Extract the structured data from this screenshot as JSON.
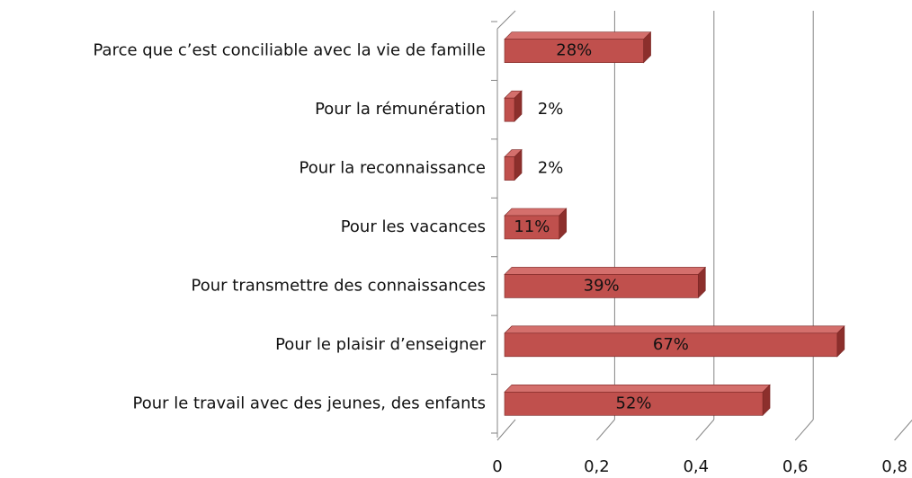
{
  "chart_data": {
    "type": "bar3d-horizontal",
    "categories": [
      "Parce que c’est conciliable avec la vie de famille",
      "Pour la rémunération",
      "Pour la reconnaissance",
      "Pour les vacances",
      "Pour transmettre des connaissances",
      "Pour le plaisir d’enseigner",
      "Pour le travail avec des jeunes, des enfants"
    ],
    "values": [
      0.28,
      0.02,
      0.02,
      0.11,
      0.39,
      0.67,
      0.52
    ],
    "value_labels": [
      "28%",
      "2%",
      "2%",
      "11%",
      "39%",
      "67%",
      "52%"
    ],
    "color": "#c0504d",
    "xlim": [
      0,
      0.8
    ],
    "xticks": [
      0,
      {
        "value": 0.2,
        "label": "0,2"
      },
      {
        "value": 0.4,
        "label": "0,4"
      },
      {
        "value": 0.6,
        "label": "0,6"
      },
      {
        "value": 0.8,
        "label": "0,8"
      }
    ],
    "grid": true
  }
}
